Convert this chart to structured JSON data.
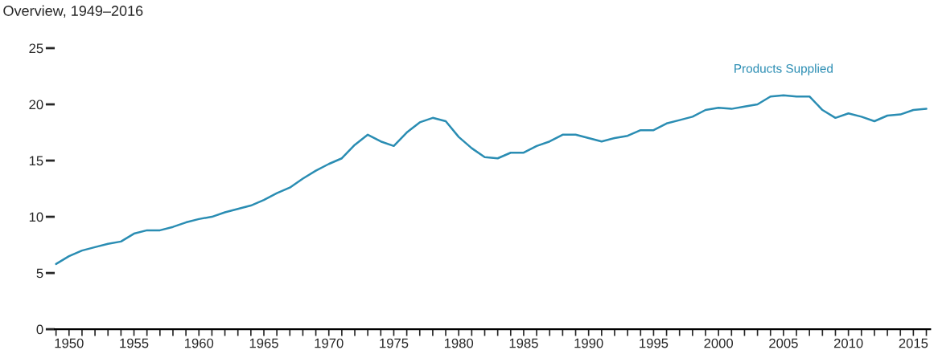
{
  "chart_data": {
    "type": "line",
    "title": "Overview, 1949–2016",
    "x": [
      1949,
      1950,
      1951,
      1952,
      1953,
      1954,
      1955,
      1956,
      1957,
      1958,
      1959,
      1960,
      1961,
      1962,
      1963,
      1964,
      1965,
      1966,
      1967,
      1968,
      1969,
      1970,
      1971,
      1972,
      1973,
      1974,
      1975,
      1976,
      1977,
      1978,
      1979,
      1980,
      1981,
      1982,
      1983,
      1984,
      1985,
      1986,
      1987,
      1988,
      1989,
      1990,
      1991,
      1992,
      1993,
      1994,
      1995,
      1996,
      1997,
      1998,
      1999,
      2000,
      2001,
      2002,
      2003,
      2004,
      2005,
      2006,
      2007,
      2008,
      2009,
      2010,
      2011,
      2012,
      2013,
      2014,
      2015,
      2016
    ],
    "series": [
      {
        "name": "Products Supplied",
        "color": "#2a8db3",
        "values": [
          5.8,
          6.5,
          7.0,
          7.3,
          7.6,
          7.8,
          8.5,
          8.8,
          8.8,
          9.1,
          9.5,
          9.8,
          10.0,
          10.4,
          10.7,
          11.0,
          11.5,
          12.1,
          12.6,
          13.4,
          14.1,
          14.7,
          15.2,
          16.4,
          17.3,
          16.7,
          16.3,
          17.5,
          18.4,
          18.8,
          18.5,
          17.1,
          16.1,
          15.3,
          15.2,
          15.7,
          15.7,
          16.3,
          16.7,
          17.3,
          17.3,
          17.0,
          16.7,
          17.0,
          17.2,
          17.7,
          17.7,
          18.3,
          18.6,
          18.9,
          19.5,
          19.7,
          19.6,
          19.8,
          20.0,
          20.7,
          20.8,
          20.7,
          20.7,
          19.5,
          18.8,
          19.2,
          18.9,
          18.5,
          19.0,
          19.1,
          19.5,
          19.6
        ]
      }
    ],
    "xlim": [
      1948.9,
      2016.3
    ],
    "xticks": [
      {
        "value": 1949,
        "label": null
      },
      1950,
      {
        "value": 1951,
        "label": null
      },
      {
        "value": 1952,
        "label": null
      },
      {
        "value": 1953,
        "label": null
      },
      {
        "value": 1954,
        "label": null
      },
      1955,
      {
        "value": 1956,
        "label": null
      },
      {
        "value": 1957,
        "label": null
      },
      {
        "value": 1958,
        "label": null
      },
      {
        "value": 1959,
        "label": null
      },
      1960,
      {
        "value": 1961,
        "label": null
      },
      {
        "value": 1962,
        "label": null
      },
      {
        "value": 1963,
        "label": null
      },
      {
        "value": 1964,
        "label": null
      },
      1965,
      {
        "value": 1966,
        "label": null
      },
      {
        "value": 1967,
        "label": null
      },
      {
        "value": 1968,
        "label": null
      },
      {
        "value": 1969,
        "label": null
      },
      1970,
      {
        "value": 1971,
        "label": null
      },
      {
        "value": 1972,
        "label": null
      },
      {
        "value": 1973,
        "label": null
      },
      {
        "value": 1974,
        "label": null
      },
      1975,
      {
        "value": 1976,
        "label": null
      },
      {
        "value": 1977,
        "label": null
      },
      {
        "value": 1978,
        "label": null
      },
      {
        "value": 1979,
        "label": null
      },
      1980,
      {
        "value": 1981,
        "label": null
      },
      {
        "value": 1982,
        "label": null
      },
      {
        "value": 1983,
        "label": null
      },
      {
        "value": 1984,
        "label": null
      },
      1985,
      {
        "value": 1986,
        "label": null
      },
      {
        "value": 1987,
        "label": null
      },
      {
        "value": 1988,
        "label": null
      },
      {
        "value": 1989,
        "label": null
      },
      1990,
      {
        "value": 1991,
        "label": null
      },
      {
        "value": 1992,
        "label": null
      },
      {
        "value": 1993,
        "label": null
      },
      {
        "value": 1994,
        "label": null
      },
      1995,
      {
        "value": 1996,
        "label": null
      },
      {
        "value": 1997,
        "label": null
      },
      {
        "value": 1998,
        "label": null
      },
      {
        "value": 1999,
        "label": null
      },
      2000,
      {
        "value": 2001,
        "label": null
      },
      {
        "value": 2002,
        "label": null
      },
      {
        "value": 2003,
        "label": null
      },
      {
        "value": 2004,
        "label": null
      },
      2005,
      {
        "value": 2006,
        "label": null
      },
      {
        "value": 2007,
        "label": null
      },
      {
        "value": 2008,
        "label": null
      },
      {
        "value": 2009,
        "label": null
      },
      2010,
      {
        "value": 2011,
        "label": null
      },
      {
        "value": 2012,
        "label": null
      },
      {
        "value": 2013,
        "label": null
      },
      {
        "value": 2014,
        "label": null
      },
      2015,
      {
        "value": 2016,
        "label": null
      }
    ],
    "ylim": [
      0,
      25
    ],
    "yticks": [
      0,
      5,
      10,
      15,
      20,
      25
    ],
    "grid": false,
    "legend": false,
    "marker": "none",
    "line_style": "solid"
  }
}
